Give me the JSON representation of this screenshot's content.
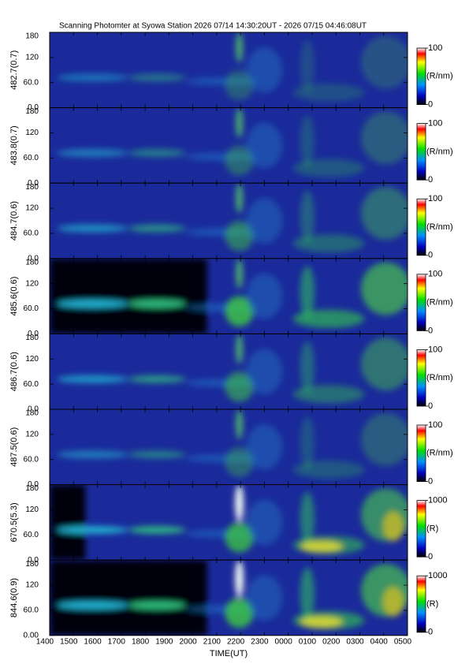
{
  "chart_data": {
    "type": "heatmap",
    "title": "Scanning Photomter at Syowa Station  2026 07/14 14:30:20UT - 2026 07/15 04:46:08UT",
    "x_label": "TIME(UT)",
    "xlim": [
      14,
      29
    ],
    "xticks": [
      {
        "value": 14,
        "label": "1400"
      },
      {
        "value": 15,
        "label": "1500"
      },
      {
        "value": 16,
        "label": "1600"
      },
      {
        "value": 17,
        "label": "1700"
      },
      {
        "value": 18,
        "label": "1800"
      },
      {
        "value": 19,
        "label": "1900"
      },
      {
        "value": 20,
        "label": "2000"
      },
      {
        "value": 21,
        "label": "2100"
      },
      {
        "value": 22,
        "label": "2200"
      },
      {
        "value": 23,
        "label": "2300"
      },
      {
        "value": 24,
        "label": "0000"
      },
      {
        "value": 25,
        "label": "0100"
      },
      {
        "value": 26,
        "label": "0200"
      },
      {
        "value": 27,
        "label": "0300"
      },
      {
        "value": 28,
        "label": "0400"
      },
      {
        "value": 29,
        "label": "0500"
      }
    ],
    "panels": [
      {
        "y_label": "482.7(0.7)",
        "ylim": [
          0,
          180
        ],
        "yticks": [
          {
            "value": 0,
            "label": "0.0"
          },
          {
            "value": 60,
            "label": "60.0"
          },
          120,
          180
        ],
        "unit": "(R/nm)",
        "clim": [
          0,
          100
        ],
        "cbar_ticks": [
          0,
          100
        ]
      },
      {
        "y_label": "483.8(0.7)",
        "ylim": [
          0,
          180
        ],
        "yticks": [
          {
            "value": 0,
            "label": "0.0"
          },
          {
            "value": 60,
            "label": "60.0"
          },
          120,
          180
        ],
        "unit": "(R/nm)",
        "clim": [
          0,
          100
        ],
        "cbar_ticks": [
          0,
          100
        ]
      },
      {
        "y_label": "484.7(0.6)",
        "ylim": [
          0,
          180
        ],
        "yticks": [
          {
            "value": 0,
            "label": "0.0"
          },
          {
            "value": 60,
            "label": "60.0"
          },
          120,
          180
        ],
        "unit": "(R/nm)",
        "clim": [
          0,
          100
        ],
        "cbar_ticks": [
          0,
          100
        ]
      },
      {
        "y_label": "485.6(0.6)",
        "ylim": [
          0,
          180
        ],
        "yticks": [
          {
            "value": 0,
            "label": "0.0"
          },
          {
            "value": 60,
            "label": "60.0"
          },
          120,
          180
        ],
        "unit": "(R/nm)",
        "clim": [
          0,
          100
        ],
        "cbar_ticks": [
          0,
          100
        ]
      },
      {
        "y_label": "486.7(0.6)",
        "ylim": [
          0,
          180
        ],
        "yticks": [
          {
            "value": 0,
            "label": "0.0"
          },
          {
            "value": 60,
            "label": "60.0"
          },
          120,
          180
        ],
        "unit": "(R/nm)",
        "clim": [
          0,
          100
        ],
        "cbar_ticks": [
          0,
          100
        ]
      },
      {
        "y_label": "487.5(0.6)",
        "ylim": [
          0,
          180
        ],
        "yticks": [
          {
            "value": 0,
            "label": "0.0"
          },
          {
            "value": 60,
            "label": "60.0"
          },
          120,
          180
        ],
        "unit": "(R/nm)",
        "clim": [
          0,
          100
        ],
        "cbar_ticks": [
          0,
          100
        ]
      },
      {
        "y_label": "670.5(5.3)",
        "ylim": [
          0,
          180
        ],
        "yticks": [
          {
            "value": 0,
            "label": "0.0"
          },
          {
            "value": 60,
            "label": "60.0"
          },
          120,
          180
        ],
        "unit": "(R)",
        "clim": [
          0,
          1000
        ],
        "cbar_ticks": [
          0,
          1000
        ]
      },
      {
        "y_label": "844.6(0.9)",
        "ylim": [
          0,
          180
        ],
        "yticks": [
          {
            "value": 0,
            "label": "0.00"
          },
          {
            "value": 60,
            "label": "60.0"
          },
          120,
          180
        ],
        "unit": "(R)",
        "clim": [
          0,
          1000
        ],
        "cbar_ticks": [
          0,
          1000
        ]
      }
    ]
  }
}
